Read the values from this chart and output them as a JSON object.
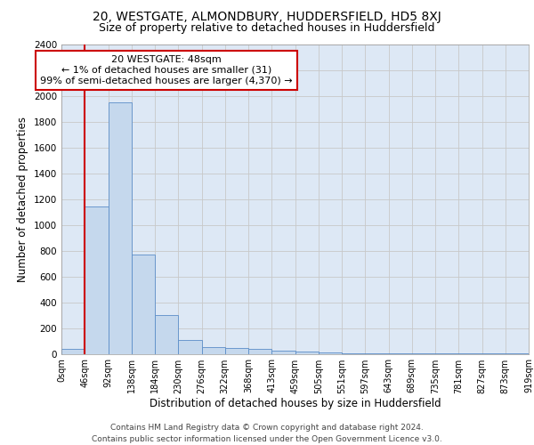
{
  "title": "20, WESTGATE, ALMONDBURY, HUDDERSFIELD, HD5 8XJ",
  "subtitle": "Size of property relative to detached houses in Huddersfield",
  "xlabel": "Distribution of detached houses by size in Huddersfield",
  "ylabel": "Number of detached properties",
  "bar_values": [
    40,
    1140,
    1950,
    770,
    300,
    110,
    50,
    45,
    35,
    25,
    20,
    8,
    5,
    4,
    3,
    2,
    2,
    1,
    1,
    1
  ],
  "x_labels": [
    "0sqm",
    "46sqm",
    "92sqm",
    "138sqm",
    "184sqm",
    "230sqm",
    "276sqm",
    "322sqm",
    "368sqm",
    "413sqm",
    "459sqm",
    "505sqm",
    "551sqm",
    "597sqm",
    "643sqm",
    "689sqm",
    "735sqm",
    "781sqm",
    "827sqm",
    "873sqm",
    "919sqm"
  ],
  "bar_color": "#c5d8ed",
  "bar_edge_color": "#5b8dc8",
  "annotation_text": "20 WESTGATE: 48sqm\n← 1% of detached houses are smaller (31)\n99% of semi-detached houses are larger (4,370) →",
  "annotation_box_color": "#ffffff",
  "annotation_box_edge_color": "#cc0000",
  "vline_color": "#cc0000",
  "ylim": [
    0,
    2400
  ],
  "yticks": [
    0,
    200,
    400,
    600,
    800,
    1000,
    1200,
    1400,
    1600,
    1800,
    2000,
    2200,
    2400
  ],
  "grid_color": "#c8c8c8",
  "bg_color": "#dde8f5",
  "footer_text": "Contains HM Land Registry data © Crown copyright and database right 2024.\nContains public sector information licensed under the Open Government Licence v3.0.",
  "title_fontsize": 10,
  "subtitle_fontsize": 9,
  "axis_label_fontsize": 8.5,
  "tick_fontsize": 7,
  "annotation_fontsize": 8,
  "footer_fontsize": 6.5
}
